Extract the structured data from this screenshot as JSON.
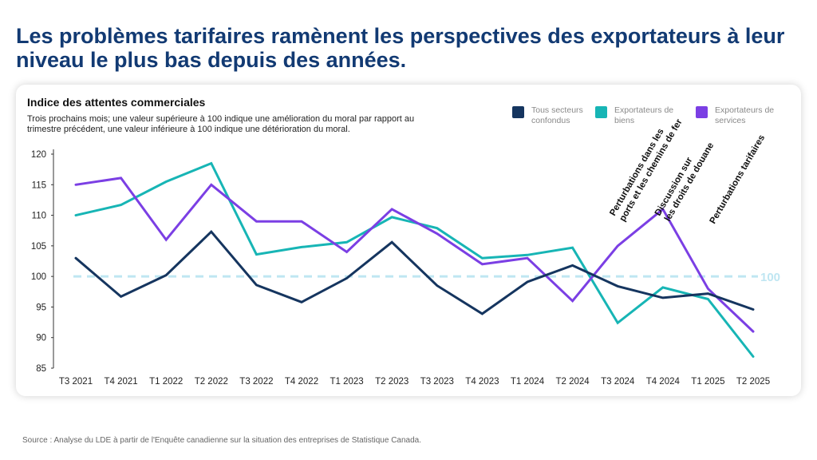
{
  "headline": "Les problèmes tarifaires ramènent les perspectives des exportateurs à leur niveau le plus bas depuis des années.",
  "source": "Source : Analyse du LDE à partir de l'Enquête canadienne sur la situation des entreprises de Statistique Canada.",
  "colors": {
    "headline": "#123a73",
    "reference": "#bfe6f2"
  },
  "chart_data": {
    "type": "line",
    "title": "Indice des attentes commerciales",
    "subtitle": "Trois prochains mois; une valeur supérieure à 100 indique une amélioration du moral par rapport au trimestre précédent, une valeur inférieure à 100 indique une détérioration du moral.",
    "xlabel": "",
    "ylabel": "",
    "ylim": [
      85,
      120
    ],
    "yticks": [
      85,
      90,
      95,
      100,
      105,
      110,
      115,
      120
    ],
    "grid": false,
    "legend_position": "top-right",
    "x": [
      "T3 2021",
      "T4 2021",
      "T1 2022",
      "T2 2022",
      "T3 2022",
      "T4 2022",
      "T1 2023",
      "T2 2023",
      "T3 2023",
      "T4 2023",
      "T1 2024",
      "T2 2024",
      "T3 2024",
      "T4 2024",
      "T1 2025",
      "T2 2025"
    ],
    "series": [
      {
        "name": "Tous secteurs confondus",
        "color": "#15355f",
        "values": [
          103.0,
          96.7,
          100.2,
          107.3,
          98.6,
          95.8,
          99.7,
          105.6,
          98.5,
          93.9,
          99.1,
          101.8,
          98.4,
          96.5,
          97.2,
          94.6
        ]
      },
      {
        "name": "Exportateurs de biens",
        "color": "#17b5b5",
        "values": [
          110.0,
          111.7,
          115.5,
          118.5,
          103.6,
          104.8,
          105.6,
          109.7,
          107.9,
          103.0,
          103.5,
          104.7,
          92.4,
          98.2,
          96.3,
          86.9
        ]
      },
      {
        "name": "Exportateurs de services",
        "color": "#7b3fe4",
        "values": [
          115.0,
          116.1,
          106.0,
          115.0,
          109.0,
          109.0,
          104.0,
          111.0,
          107.0,
          102.0,
          103.0,
          96.0,
          105.0,
          111.0,
          98.0,
          91.0
        ]
      }
    ],
    "reference_line": {
      "value": 100,
      "label": "100"
    },
    "annotations": [
      {
        "x": "T3 2024",
        "text": [
          "Perturbations dans les",
          "ports et les chemins de fer"
        ]
      },
      {
        "x": "T4 2024",
        "text": [
          "Discussion sur",
          "les droits de douane"
        ]
      },
      {
        "x": "T1 2025",
        "text": [
          "Perturbations tarifaires"
        ]
      }
    ]
  }
}
